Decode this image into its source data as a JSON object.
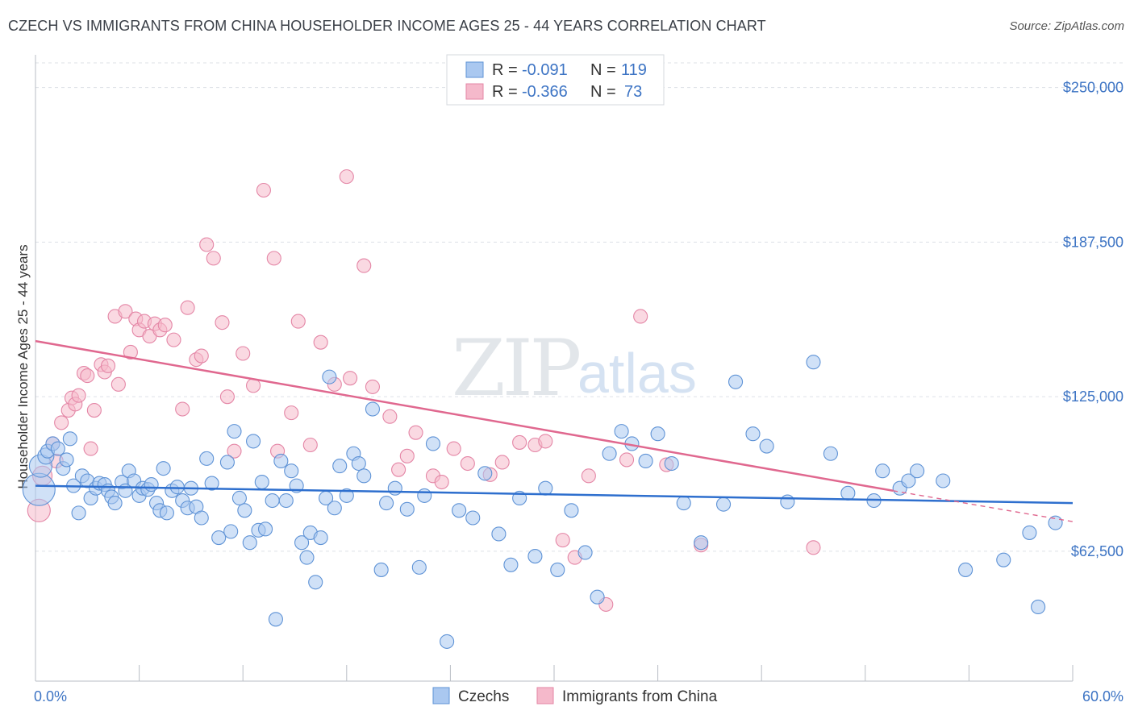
{
  "title": "CZECH VS IMMIGRANTS FROM CHINA HOUSEHOLDER INCOME AGES 25 - 44 YEARS CORRELATION CHART",
  "source": "Source: ZipAtlas.com",
  "watermark": {
    "part1": "ZIP",
    "part2": "atlas"
  },
  "colors": {
    "czech_fill": "#aac8f0",
    "czech_stroke": "#5f93d6",
    "czech_line": "#2e6fce",
    "china_fill": "#f5b9cb",
    "china_stroke": "#e486a6",
    "china_line": "#e0688f",
    "axis_text": "#3d74c4",
    "grid": "#dde1e6"
  },
  "legend": {
    "rows": [
      {
        "r_label": "R = ",
        "r_value": "-0.091",
        "n_label": "N = ",
        "n_value": "119"
      },
      {
        "r_label": "R = ",
        "r_value": "-0.366",
        "n_label": "N = ",
        "n_value": "73"
      }
    ]
  },
  "bottom_legend": [
    "Czechs",
    "Immigrants from China"
  ],
  "chart_data": {
    "type": "scatter",
    "ylabel": "Householder Income Ages 25 - 44 years",
    "xlim": [
      0,
      60
    ],
    "ylim": [
      10000,
      260000
    ],
    "x_ticks": [
      0,
      60
    ],
    "x_tick_labels": [
      "0.0%",
      "60.0%"
    ],
    "y_ticks": [
      62500,
      125000,
      187500,
      250000
    ],
    "y_tick_labels": [
      "$62,500",
      "$125,000",
      "$187,500",
      "$250,000"
    ],
    "grid": true,
    "series": [
      {
        "name": "Czechs",
        "R": -0.091,
        "N": 119,
        "trend": {
          "x0": 0,
          "y0": 89000,
          "x1": 60,
          "y1": 82000
        },
        "points": [
          [
            0.2,
            87500,
            20
          ],
          [
            0.3,
            97000,
            14
          ],
          [
            0.6,
            101000,
            10
          ],
          [
            0.7,
            103000,
            8
          ],
          [
            1.0,
            106000,
            8
          ],
          [
            1.3,
            104000,
            8
          ],
          [
            1.6,
            96000,
            8
          ],
          [
            1.8,
            99500,
            8
          ],
          [
            2.0,
            108000,
            8
          ],
          [
            2.2,
            89000,
            8
          ],
          [
            2.5,
            78000,
            8
          ],
          [
            2.7,
            93000,
            8
          ],
          [
            3.0,
            91000,
            8
          ],
          [
            3.2,
            84000,
            8
          ],
          [
            3.5,
            88000,
            8
          ],
          [
            3.7,
            90000,
            8
          ],
          [
            4.0,
            89500,
            8
          ],
          [
            4.2,
            87000,
            8
          ],
          [
            4.4,
            84500,
            8
          ],
          [
            4.6,
            82000,
            8
          ],
          [
            5.0,
            90500,
            8
          ],
          [
            5.2,
            87000,
            8
          ],
          [
            5.4,
            95000,
            8
          ],
          [
            5.7,
            91000,
            8
          ],
          [
            6.0,
            85000,
            8
          ],
          [
            6.2,
            88000,
            8
          ],
          [
            6.5,
            87500,
            8
          ],
          [
            6.7,
            89500,
            8
          ],
          [
            7.0,
            82000,
            8
          ],
          [
            7.2,
            79000,
            8
          ],
          [
            7.4,
            96000,
            8
          ],
          [
            7.6,
            78000,
            8
          ],
          [
            7.9,
            87000,
            8
          ],
          [
            8.2,
            88500,
            8
          ],
          [
            8.5,
            83000,
            8
          ],
          [
            8.8,
            80000,
            8
          ],
          [
            9.0,
            88000,
            8
          ],
          [
            9.3,
            80500,
            8
          ],
          [
            9.6,
            76000,
            8
          ],
          [
            9.9,
            100000,
            8
          ],
          [
            10.2,
            90000,
            8
          ],
          [
            10.6,
            68000,
            8
          ],
          [
            11.1,
            98500,
            8
          ],
          [
            11.3,
            70500,
            8
          ],
          [
            11.5,
            111000,
            8
          ],
          [
            11.8,
            84000,
            8
          ],
          [
            12.1,
            79000,
            8
          ],
          [
            12.4,
            66000,
            8
          ],
          [
            12.6,
            107000,
            8
          ],
          [
            12.9,
            71000,
            8
          ],
          [
            13.1,
            90500,
            8
          ],
          [
            13.3,
            71500,
            8
          ],
          [
            13.7,
            83000,
            8
          ],
          [
            13.9,
            35000,
            8
          ],
          [
            14.2,
            99000,
            8
          ],
          [
            14.5,
            83000,
            8
          ],
          [
            14.8,
            95000,
            8
          ],
          [
            15.1,
            89000,
            8
          ],
          [
            15.4,
            66000,
            8
          ],
          [
            15.7,
            60000,
            8
          ],
          [
            15.9,
            70000,
            8
          ],
          [
            16.2,
            50000,
            8
          ],
          [
            16.5,
            68000,
            8
          ],
          [
            16.8,
            84000,
            8
          ],
          [
            17.0,
            133000,
            8
          ],
          [
            17.3,
            80000,
            8
          ],
          [
            17.6,
            97000,
            8
          ],
          [
            18.0,
            85000,
            8
          ],
          [
            18.4,
            102000,
            8
          ],
          [
            18.7,
            98000,
            8
          ],
          [
            19.0,
            93000,
            8
          ],
          [
            19.5,
            120000,
            8
          ],
          [
            20.0,
            55000,
            8
          ],
          [
            20.3,
            82000,
            8
          ],
          [
            20.8,
            88000,
            8
          ],
          [
            21.5,
            79500,
            8
          ],
          [
            22.2,
            56000,
            8
          ],
          [
            22.5,
            85000,
            8
          ],
          [
            23.0,
            106000,
            8
          ],
          [
            23.8,
            26000,
            8
          ],
          [
            24.5,
            79000,
            8
          ],
          [
            25.3,
            76000,
            8
          ],
          [
            26.0,
            94000,
            8
          ],
          [
            26.8,
            69500,
            8
          ],
          [
            27.5,
            57000,
            8
          ],
          [
            28.0,
            84000,
            8
          ],
          [
            28.9,
            60500,
            8
          ],
          [
            29.5,
            88000,
            8
          ],
          [
            30.2,
            55000,
            8
          ],
          [
            31.0,
            79000,
            8
          ],
          [
            31.8,
            62000,
            8
          ],
          [
            32.5,
            44000,
            8
          ],
          [
            33.2,
            102000,
            8
          ],
          [
            33.9,
            111000,
            8
          ],
          [
            34.5,
            106000,
            8
          ],
          [
            35.3,
            99000,
            8
          ],
          [
            36.0,
            110000,
            8
          ],
          [
            36.8,
            98000,
            8
          ],
          [
            37.5,
            82000,
            8
          ],
          [
            38.5,
            66000,
            8
          ],
          [
            39.8,
            81500,
            8
          ],
          [
            40.5,
            131000,
            8
          ],
          [
            41.5,
            110000,
            8
          ],
          [
            42.3,
            105000,
            8
          ],
          [
            43.5,
            82500,
            8
          ],
          [
            45.0,
            139000,
            8
          ],
          [
            46.0,
            102000,
            8
          ],
          [
            47.0,
            86000,
            8
          ],
          [
            48.5,
            83000,
            8
          ],
          [
            49.0,
            95000,
            8
          ],
          [
            50.0,
            88000,
            8
          ],
          [
            50.5,
            91000,
            8
          ],
          [
            51.0,
            95000,
            8
          ],
          [
            52.5,
            91000,
            8
          ],
          [
            53.8,
            55000,
            8
          ],
          [
            56.0,
            59000,
            8
          ],
          [
            57.5,
            70000,
            8
          ],
          [
            58.0,
            40000,
            8
          ],
          [
            59.0,
            74000,
            8
          ]
        ]
      },
      {
        "name": "Immigrants from China",
        "R": -0.366,
        "N": 73,
        "trend": {
          "x0": 0,
          "y0": 147500,
          "x1": 49.6,
          "y1": 87000
        },
        "trend_dash": {
          "x0": 49.6,
          "y0": 87000,
          "x1": 60,
          "y1": 74500
        },
        "points": [
          [
            0.2,
            79000,
            14
          ],
          [
            0.4,
            93000,
            12
          ],
          [
            1.0,
            106000,
            8
          ],
          [
            1.2,
            99000,
            8
          ],
          [
            1.5,
            114500,
            8
          ],
          [
            1.9,
            119500,
            8
          ],
          [
            2.1,
            124500,
            8
          ],
          [
            2.3,
            122000,
            8
          ],
          [
            2.5,
            125500,
            8
          ],
          [
            2.8,
            134500,
            8
          ],
          [
            3.0,
            133500,
            8
          ],
          [
            3.2,
            104000,
            8
          ],
          [
            3.4,
            119500,
            8
          ],
          [
            3.8,
            138000,
            8
          ],
          [
            4.0,
            135000,
            8
          ],
          [
            4.2,
            137500,
            8
          ],
          [
            4.6,
            157500,
            8
          ],
          [
            4.8,
            130000,
            8
          ],
          [
            5.2,
            159500,
            8
          ],
          [
            5.5,
            143000,
            8
          ],
          [
            5.8,
            156500,
            8
          ],
          [
            6.0,
            152000,
            8
          ],
          [
            6.3,
            155500,
            8
          ],
          [
            6.6,
            149500,
            8
          ],
          [
            6.9,
            154500,
            8
          ],
          [
            7.2,
            152000,
            8
          ],
          [
            7.5,
            154000,
            8
          ],
          [
            8.0,
            148000,
            8
          ],
          [
            8.5,
            120000,
            8
          ],
          [
            8.8,
            161000,
            8
          ],
          [
            9.3,
            140000,
            8
          ],
          [
            9.6,
            141500,
            8
          ],
          [
            9.9,
            186500,
            8
          ],
          [
            10.3,
            181000,
            8
          ],
          [
            10.8,
            155000,
            8
          ],
          [
            11.1,
            125000,
            8
          ],
          [
            11.5,
            103000,
            8
          ],
          [
            12.0,
            142500,
            8
          ],
          [
            12.6,
            129500,
            8
          ],
          [
            13.2,
            208500,
            8
          ],
          [
            13.8,
            181000,
            8
          ],
          [
            14.0,
            103000,
            8
          ],
          [
            14.8,
            118500,
            8
          ],
          [
            15.2,
            155500,
            8
          ],
          [
            15.9,
            105500,
            8
          ],
          [
            16.5,
            147000,
            8
          ],
          [
            17.3,
            130000,
            8
          ],
          [
            18.0,
            214000,
            8
          ],
          [
            18.2,
            132500,
            8
          ],
          [
            19.0,
            178000,
            8
          ],
          [
            19.5,
            129000,
            8
          ],
          [
            20.5,
            117000,
            8
          ],
          [
            21.0,
            95500,
            8
          ],
          [
            21.5,
            101000,
            8
          ],
          [
            22.0,
            110500,
            8
          ],
          [
            23.0,
            93000,
            8
          ],
          [
            23.5,
            90500,
            8
          ],
          [
            24.2,
            104000,
            8
          ],
          [
            25.0,
            98000,
            8
          ],
          [
            26.3,
            93500,
            8
          ],
          [
            27.0,
            98500,
            8
          ],
          [
            28.0,
            106500,
            8
          ],
          [
            28.9,
            105500,
            8
          ],
          [
            29.5,
            107000,
            8
          ],
          [
            30.5,
            67000,
            8
          ],
          [
            31.2,
            60000,
            8
          ],
          [
            32.0,
            93000,
            8
          ],
          [
            33.0,
            41000,
            8
          ],
          [
            34.2,
            99500,
            8
          ],
          [
            35.0,
            157500,
            8
          ],
          [
            36.5,
            97500,
            8
          ],
          [
            38.5,
            65000,
            8
          ],
          [
            45.0,
            64000,
            8
          ]
        ]
      }
    ]
  }
}
